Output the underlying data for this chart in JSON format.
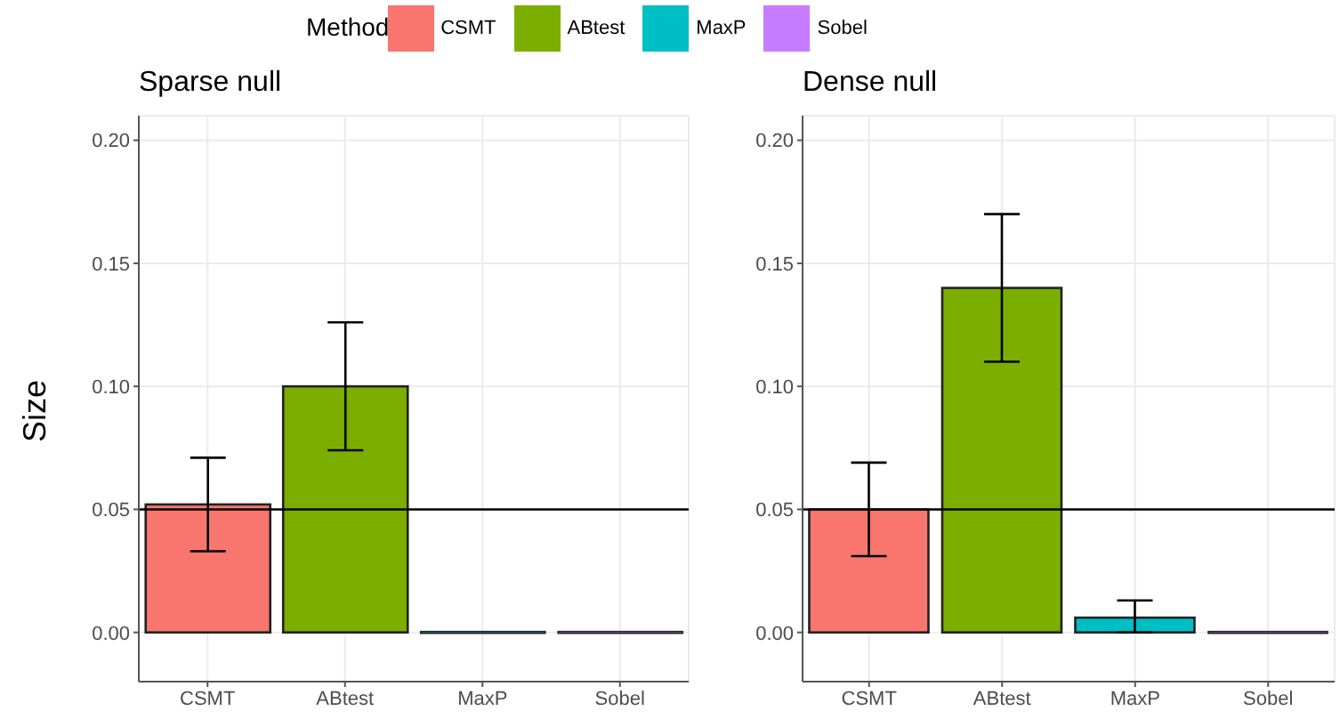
{
  "chart_data": [
    {
      "type": "bar",
      "title": "Sparse null",
      "ylabel": "Size",
      "legend_title": "Method",
      "legend": "top",
      "grid": true,
      "stacked": true,
      "categories": [
        "CSMT",
        "ABtest",
        "MaxP",
        "Sobel"
      ],
      "series": [
        {
          "name": "CSMT",
          "color": "#f8766d",
          "values": [
            0.052,
            null,
            null,
            null
          ],
          "errors": [
            [
              0.033,
              0.071
            ],
            null,
            null,
            null
          ]
        },
        {
          "name": "ABtest",
          "color": "#7cae00",
          "values": [
            null,
            0.1,
            null,
            null
          ],
          "errors": [
            null,
            [
              0.074,
              0.126
            ],
            null,
            null
          ]
        },
        {
          "name": "MaxP",
          "color": "#00bfc4",
          "values": [
            null,
            null,
            0,
            null
          ]
        },
        {
          "name": "Sobel",
          "color": "#c77cff",
          "values": [
            null,
            null,
            null,
            0
          ]
        }
      ],
      "ylim": [
        -0.02,
        0.21
      ],
      "yticks": [
        {
          "value": 0,
          "label": "0.00"
        },
        {
          "value": 0.05,
          "label": "0.05"
        },
        {
          "value": 0.1,
          "label": "0.10"
        },
        {
          "value": 0.15,
          "label": "0.15"
        },
        {
          "value": 0.2,
          "label": "0.20"
        }
      ],
      "ref_lines": [
        {
          "axis": "y",
          "value": 0.05,
          "color": "#000000"
        }
      ]
    },
    {
      "type": "bar",
      "title": "Dense null",
      "grid": true,
      "stacked": true,
      "categories": [
        "CSMT",
        "ABtest",
        "MaxP",
        "Sobel"
      ],
      "series": [
        {
          "color": "#f8766d",
          "values": [
            0.05,
            null,
            null,
            null
          ],
          "errors": [
            [
              0.031,
              0.069
            ],
            null,
            null,
            null
          ]
        },
        {
          "color": "#7cae00",
          "values": [
            null,
            0.14,
            null,
            null
          ],
          "errors": [
            null,
            [
              0.11,
              0.17
            ],
            null,
            null
          ]
        },
        {
          "color": "#00bfc4",
          "values": [
            null,
            null,
            0.006,
            null
          ],
          "errors": [
            null,
            null,
            [
              0,
              0.013
            ],
            null
          ]
        },
        {
          "color": "#c77cff",
          "values": [
            null,
            null,
            null,
            0
          ]
        }
      ],
      "ylim": [
        -0.02,
        0.21
      ],
      "yticks": [
        {
          "value": 0,
          "label": "0.00"
        },
        {
          "value": 0.05,
          "label": "0.05"
        },
        {
          "value": 0.1,
          "label": "0.10"
        },
        {
          "value": 0.15,
          "label": "0.15"
        },
        {
          "value": 0.2,
          "label": "0.20"
        }
      ],
      "ref_lines": [
        {
          "axis": "y",
          "value": 0.05,
          "color": "#000000"
        }
      ]
    }
  ]
}
